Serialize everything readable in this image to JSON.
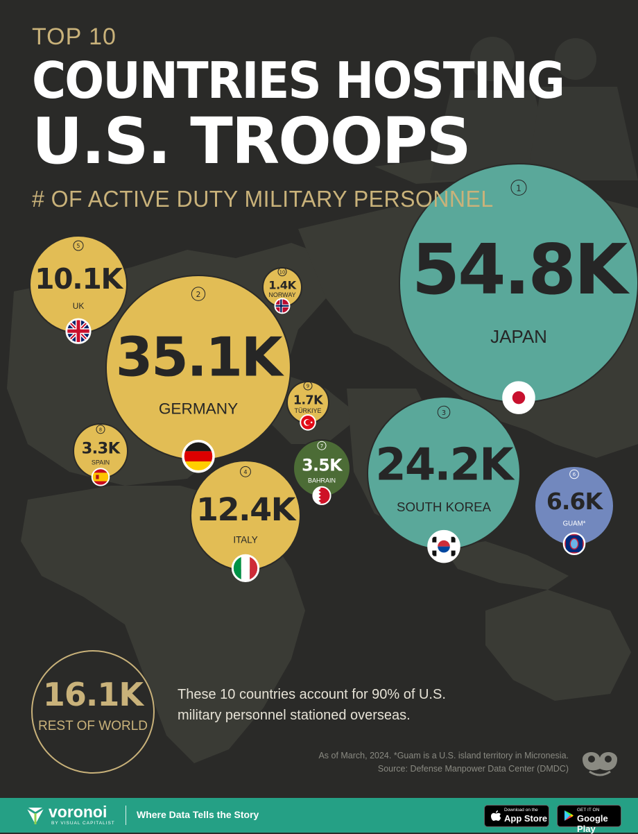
{
  "header": {
    "kicker": "TOP 10",
    "title_line1": "COUNTRIES HOSTING",
    "title_line2": "U.S. TROOPS",
    "subtitle": "# OF ACTIVE DUTY MILITARY PERSONNEL"
  },
  "chart_data": {
    "type": "bubble",
    "unit": "active duty military personnel",
    "bubbles": [
      {
        "rank": "1",
        "country": "JAPAN",
        "value": 54800,
        "label": "54.8K",
        "group": "teal",
        "flag": "japan-flag-icon"
      },
      {
        "rank": "2",
        "country": "GERMANY",
        "value": 35100,
        "label": "35.1K",
        "group": "gold",
        "flag": "germany-flag-icon"
      },
      {
        "rank": "3",
        "country": "SOUTH KOREA",
        "value": 24200,
        "label": "24.2K",
        "group": "teal",
        "flag": "south-korea-flag-icon"
      },
      {
        "rank": "4",
        "country": "ITALY",
        "value": 12400,
        "label": "12.4K",
        "group": "gold",
        "flag": "italy-flag-icon"
      },
      {
        "rank": "5",
        "country": "UK",
        "value": 10100,
        "label": "10.1K",
        "group": "gold",
        "flag": "uk-flag-icon"
      },
      {
        "rank": "6",
        "country": "GUAM*",
        "value": 6600,
        "label": "6.6K",
        "group": "blue",
        "flag": "guam-flag-icon"
      },
      {
        "rank": "7",
        "country": "BAHRAIN",
        "value": 3500,
        "label": "3.5K",
        "group": "green",
        "flag": "bahrain-flag-icon"
      },
      {
        "rank": "8",
        "country": "SPAIN",
        "value": 3300,
        "label": "3.3K",
        "group": "gold",
        "flag": "spain-flag-icon"
      },
      {
        "rank": "9",
        "country": "TÜRKIYE",
        "value": 1700,
        "label": "1.7K",
        "group": "gold",
        "flag": "turkiye-flag-icon"
      },
      {
        "rank": "10",
        "country": "NORWAY",
        "value": 1400,
        "label": "1.4K",
        "group": "gold",
        "flag": "norway-flag-icon"
      }
    ],
    "rest_of_world": {
      "value": 16100,
      "label": "16.1K",
      "name": "REST OF WORLD"
    }
  },
  "colors": {
    "background": "#2a2a28",
    "land": "#3c3d37",
    "gold": "#e2bd55",
    "teal": "#5aa89a",
    "blue": "#7288be",
    "green": "#4c6c36",
    "number_dark": "#262626",
    "accent_text": "#c9b27a",
    "footer": "#25a085"
  },
  "note_text": "These 10 countries account for 90% of U.S. military personnel stationed overseas.",
  "footnote1": "As of March, 2024. *Guam is a U.S. island territory in Micronesia.",
  "footnote2": "Source: Defense Manpower Data Center (DMDC)",
  "footer": {
    "brand": "voronoi",
    "brand_sub": "BY VISUAL CAPITALIST",
    "tagline": "Where Data Tells the Story",
    "appstore_small": "Download on the",
    "appstore_big": "App Store",
    "googleplay_small": "GET IT ON",
    "googleplay_big": "Google Play"
  }
}
